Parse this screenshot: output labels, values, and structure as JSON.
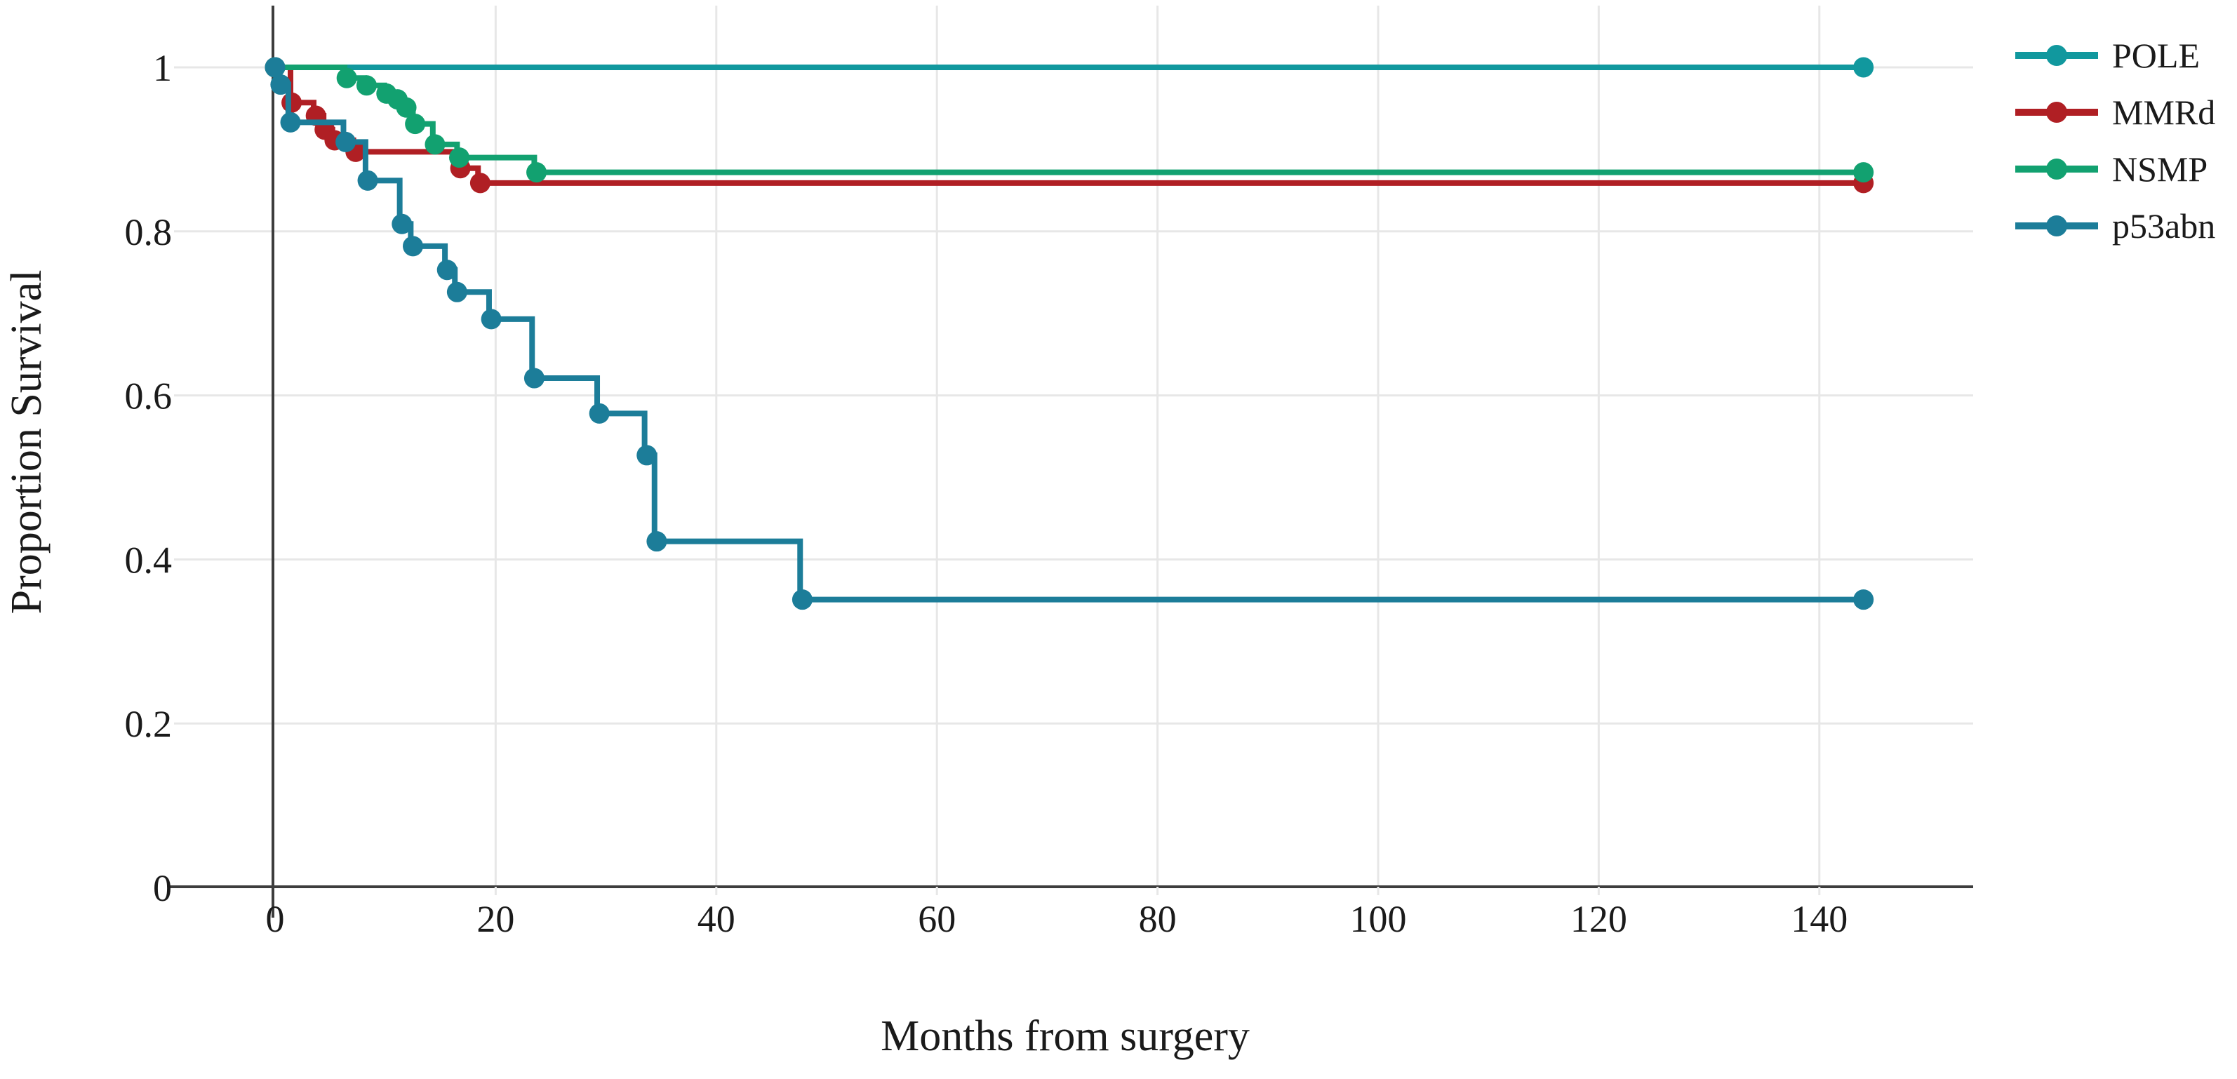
{
  "chart_data": {
    "type": "line",
    "subtype": "kaplan-meier-step-function",
    "title": "",
    "xlabel": "Months from surgery",
    "ylabel": "Proportion Survival",
    "xlim": [
      -4,
      153
    ],
    "ylim": [
      0,
      1.05
    ],
    "x_ticks": [
      0,
      20,
      40,
      60,
      80,
      100,
      120,
      140
    ],
    "y_ticks": [
      1,
      0.8,
      0.6,
      0.4,
      0.2,
      0
    ],
    "y_tick_labels": [
      "1",
      "0.8",
      "0.6",
      "0.4",
      "0.2",
      "0"
    ],
    "grid": true,
    "grid_color": "#e7e7e7",
    "axis_color": "#3d3d3d",
    "legend_position": "right",
    "marker": "filled-circle-censor-marks",
    "series": [
      {
        "name": "POLE",
        "color": "#11989e",
        "end_month": 144,
        "steps": [
          [
            0,
            1.0
          ]
        ],
        "censors": [
          [
            0,
            1.0
          ],
          [
            144,
            1.0
          ]
        ]
      },
      {
        "name": "MMRd",
        "color": "#b01f24",
        "end_month": 144,
        "steps": [
          [
            0,
            1.0
          ],
          [
            1.4,
            0.957
          ],
          [
            3.5,
            0.941
          ],
          [
            4.4,
            0.924
          ],
          [
            5.2,
            0.911
          ],
          [
            7.1,
            0.897
          ],
          [
            16.7,
            0.877
          ],
          [
            18.4,
            0.859
          ]
        ],
        "censors": [
          [
            0,
            1.0
          ],
          [
            1.5,
            0.957
          ],
          [
            3.7,
            0.941
          ],
          [
            4.5,
            0.924
          ],
          [
            5.4,
            0.911
          ],
          [
            7.3,
            0.897
          ],
          [
            16.8,
            0.877
          ],
          [
            18.6,
            0.859
          ],
          [
            144,
            0.859
          ]
        ]
      },
      {
        "name": "NSMP",
        "color": "#12a170",
        "end_month": 144,
        "steps": [
          [
            0,
            1.0
          ],
          [
            6.3,
            0.987
          ],
          [
            8.1,
            0.978
          ],
          [
            9.9,
            0.968
          ],
          [
            10.9,
            0.961
          ],
          [
            11.7,
            0.951
          ],
          [
            12.5,
            0.931
          ],
          [
            14.3,
            0.906
          ],
          [
            16.5,
            0.89
          ],
          [
            23.5,
            0.872
          ]
        ],
        "censors": [
          [
            0,
            1.0
          ],
          [
            6.5,
            0.987
          ],
          [
            8.3,
            0.978
          ],
          [
            10.1,
            0.968
          ],
          [
            11.1,
            0.961
          ],
          [
            11.9,
            0.951
          ],
          [
            12.7,
            0.931
          ],
          [
            14.5,
            0.906
          ],
          [
            16.7,
            0.89
          ],
          [
            23.7,
            0.872
          ],
          [
            144,
            0.872
          ]
        ]
      },
      {
        "name": "p53abn",
        "color": "#1c7d99",
        "end_month": 144,
        "steps": [
          [
            0,
            1.0
          ],
          [
            0.4,
            0.979
          ],
          [
            1.2,
            0.933
          ],
          [
            6.2,
            0.909
          ],
          [
            8.2,
            0.862
          ],
          [
            11.3,
            0.809
          ],
          [
            12.3,
            0.782
          ],
          [
            15.4,
            0.753
          ],
          [
            16.3,
            0.726
          ],
          [
            19.4,
            0.693
          ],
          [
            23.3,
            0.621
          ],
          [
            29.2,
            0.578
          ],
          [
            33.5,
            0.527
          ],
          [
            34.4,
            0.422
          ],
          [
            47.6,
            0.351
          ]
        ],
        "censors": [
          [
            0,
            1.0
          ],
          [
            0.5,
            0.979
          ],
          [
            1.4,
            0.933
          ],
          [
            6.4,
            0.909
          ],
          [
            8.4,
            0.862
          ],
          [
            11.5,
            0.809
          ],
          [
            12.5,
            0.782
          ],
          [
            15.6,
            0.753
          ],
          [
            16.5,
            0.726
          ],
          [
            19.6,
            0.693
          ],
          [
            23.5,
            0.621
          ],
          [
            29.4,
            0.578
          ],
          [
            33.7,
            0.527
          ],
          [
            34.6,
            0.422
          ],
          [
            47.8,
            0.351
          ],
          [
            144,
            0.351
          ]
        ]
      }
    ],
    "legend_labels": [
      "POLE",
      "MMRd",
      "NSMP",
      "p53abn"
    ]
  }
}
